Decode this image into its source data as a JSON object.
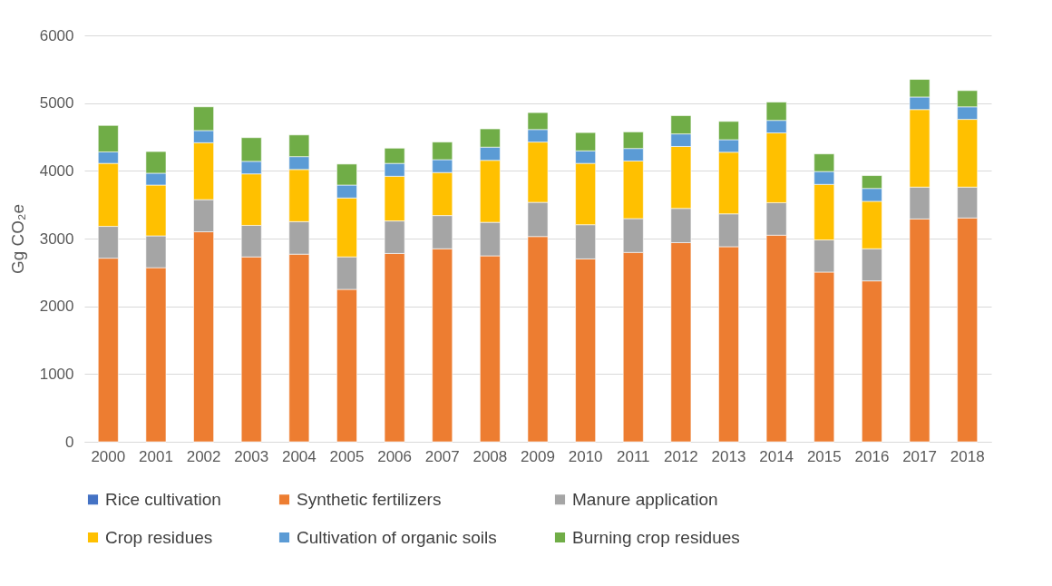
{
  "chart_data": {
    "type": "bar",
    "stacked": true,
    "ylabel": "Gg CO₂e",
    "categories": [
      "2000",
      "2001",
      "2002",
      "2003",
      "2004",
      "2005",
      "2006",
      "2007",
      "2008",
      "2009",
      "2010",
      "2011",
      "2012",
      "2013",
      "2014",
      "2015",
      "2016",
      "2017",
      "2018"
    ],
    "series": [
      {
        "name": "Rice cultivation",
        "color": "#4472c4",
        "values": [
          0,
          0,
          0,
          0,
          0,
          0,
          0,
          0,
          0,
          0,
          0,
          0,
          0,
          0,
          0,
          0,
          0,
          0,
          0
        ]
      },
      {
        "name": "Synthetic fertilizers",
        "color": "#ed7d31",
        "values": [
          2710,
          2570,
          3100,
          2730,
          2770,
          2250,
          2780,
          2850,
          2745,
          3030,
          2700,
          2795,
          2940,
          2880,
          3050,
          2505,
          2375,
          3290,
          3305
        ]
      },
      {
        "name": "Manure application",
        "color": "#a5a5a5",
        "values": [
          470,
          470,
          475,
          465,
          480,
          480,
          480,
          490,
          495,
          505,
          505,
          500,
          505,
          485,
          480,
          475,
          475,
          470,
          455
        ]
      },
      {
        "name": "Crop residues",
        "color": "#ffc000",
        "values": [
          930,
          750,
          840,
          760,
          770,
          870,
          660,
          635,
          915,
          890,
          905,
          850,
          915,
          910,
          1030,
          820,
          700,
          1145,
          1000
        ]
      },
      {
        "name": "Cultivation of organic soils",
        "color": "#5b9bd5",
        "values": [
          170,
          175,
          180,
          185,
          190,
          190,
          190,
          190,
          195,
          185,
          185,
          185,
          185,
          185,
          185,
          190,
          190,
          185,
          185
        ]
      },
      {
        "name": "Burning crop residues",
        "color": "#70ad47",
        "values": [
          390,
          320,
          350,
          350,
          320,
          310,
          225,
          260,
          270,
          250,
          270,
          245,
          270,
          270,
          270,
          260,
          190,
          260,
          240
        ]
      }
    ],
    "ylim": [
      0,
      6000
    ],
    "yticks": [
      0,
      1000,
      2000,
      3000,
      4000,
      5000,
      6000
    ],
    "grid": "y",
    "legend": "bottom"
  }
}
